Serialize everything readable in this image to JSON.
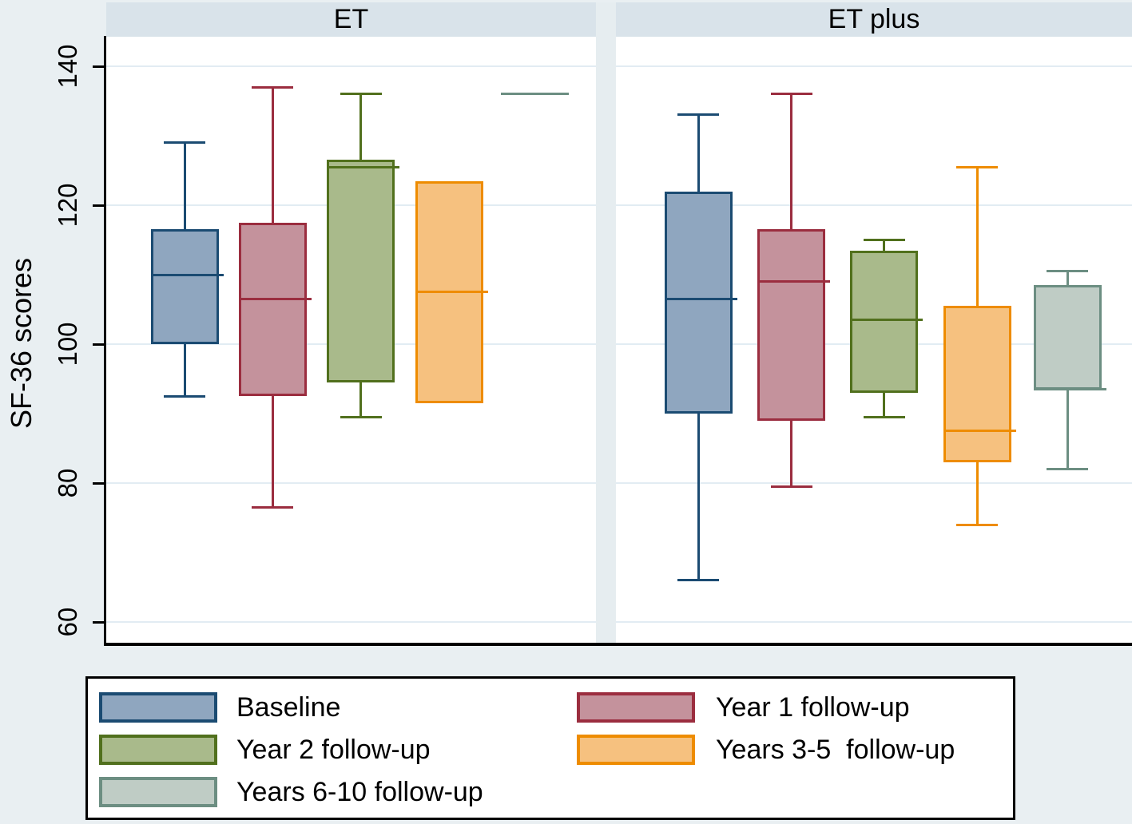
{
  "figure_title": "SF-36 scores boxplot by treatment panel",
  "y_axis": {
    "label": "SF-36 scores",
    "ticks": [
      140,
      120,
      100,
      80,
      60
    ]
  },
  "series_styles": [
    {
      "key": "baseline",
      "fill": "#8fa6bf",
      "stroke": "#1b4b72"
    },
    {
      "key": "year1",
      "fill": "#c4929c",
      "stroke": "#9b2d3f"
    },
    {
      "key": "year2",
      "fill": "#a9ba8b",
      "stroke": "#51701d"
    },
    {
      "key": "years3to5",
      "fill": "#f6c17f",
      "stroke": "#ee8c00"
    },
    {
      "key": "years6to10",
      "fill": "#bfccc5",
      "stroke": "#6c8e82"
    }
  ],
  "legend": {
    "items": [
      {
        "series": 0,
        "label": "Baseline"
      },
      {
        "series": 1,
        "label": "Year 1 follow-up"
      },
      {
        "series": 2,
        "label": "Year 2 follow-up"
      },
      {
        "series": 3,
        "label": "Years 3-5  follow-up"
      },
      {
        "series": 4,
        "label": "Years 6-10 follow-up"
      }
    ]
  },
  "chart_data": {
    "type": "boxplot",
    "ylabel": "SF-36 scores",
    "ylim": [
      56,
      145
    ],
    "yticks": [
      60,
      80,
      100,
      120,
      140
    ],
    "grid": true,
    "legend_position": "bottom-left",
    "panels": [
      {
        "title": "ET",
        "groups": [
          {
            "name": "Baseline",
            "min": 92.5,
            "q1": 100,
            "median": 110,
            "q3": 116.5,
            "max": 129
          },
          {
            "name": "Year 1 follow-up",
            "min": 76.5,
            "q1": 92.5,
            "median": 106.5,
            "q3": 117.5,
            "max": 137
          },
          {
            "name": "Year 2 follow-up",
            "min": 89.5,
            "q1": 94.5,
            "median": 125.5,
            "q3": 126.5,
            "max": 136
          },
          {
            "name": "Years 3-5 follow-up",
            "min": 91.5,
            "q1": 91.5,
            "median": 107.5,
            "q3": 123.5,
            "max": 123.5
          },
          {
            "name": "Years 6-10 follow-up",
            "min": 136,
            "q1": 136,
            "median": 136,
            "q3": 136,
            "max": 136
          }
        ]
      },
      {
        "title": "ET plus",
        "groups": [
          {
            "name": "Baseline",
            "min": 66,
            "q1": 90,
            "median": 106.5,
            "q3": 122,
            "max": 133
          },
          {
            "name": "Year 1 follow-up",
            "min": 79.5,
            "q1": 89,
            "median": 109,
            "q3": 116.5,
            "max": 136
          },
          {
            "name": "Year 2 follow-up",
            "min": 89.5,
            "q1": 93,
            "median": 103.5,
            "q3": 113.5,
            "max": 115
          },
          {
            "name": "Years 3-5 follow-up",
            "min": 74,
            "q1": 83,
            "median": 87.5,
            "q3": 105.5,
            "max": 125.5
          },
          {
            "name": "Years 6-10 follow-up",
            "min": 82,
            "q1": 93.5,
            "median": 93.5,
            "q3": 108.5,
            "max": 110.5
          }
        ]
      }
    ]
  }
}
